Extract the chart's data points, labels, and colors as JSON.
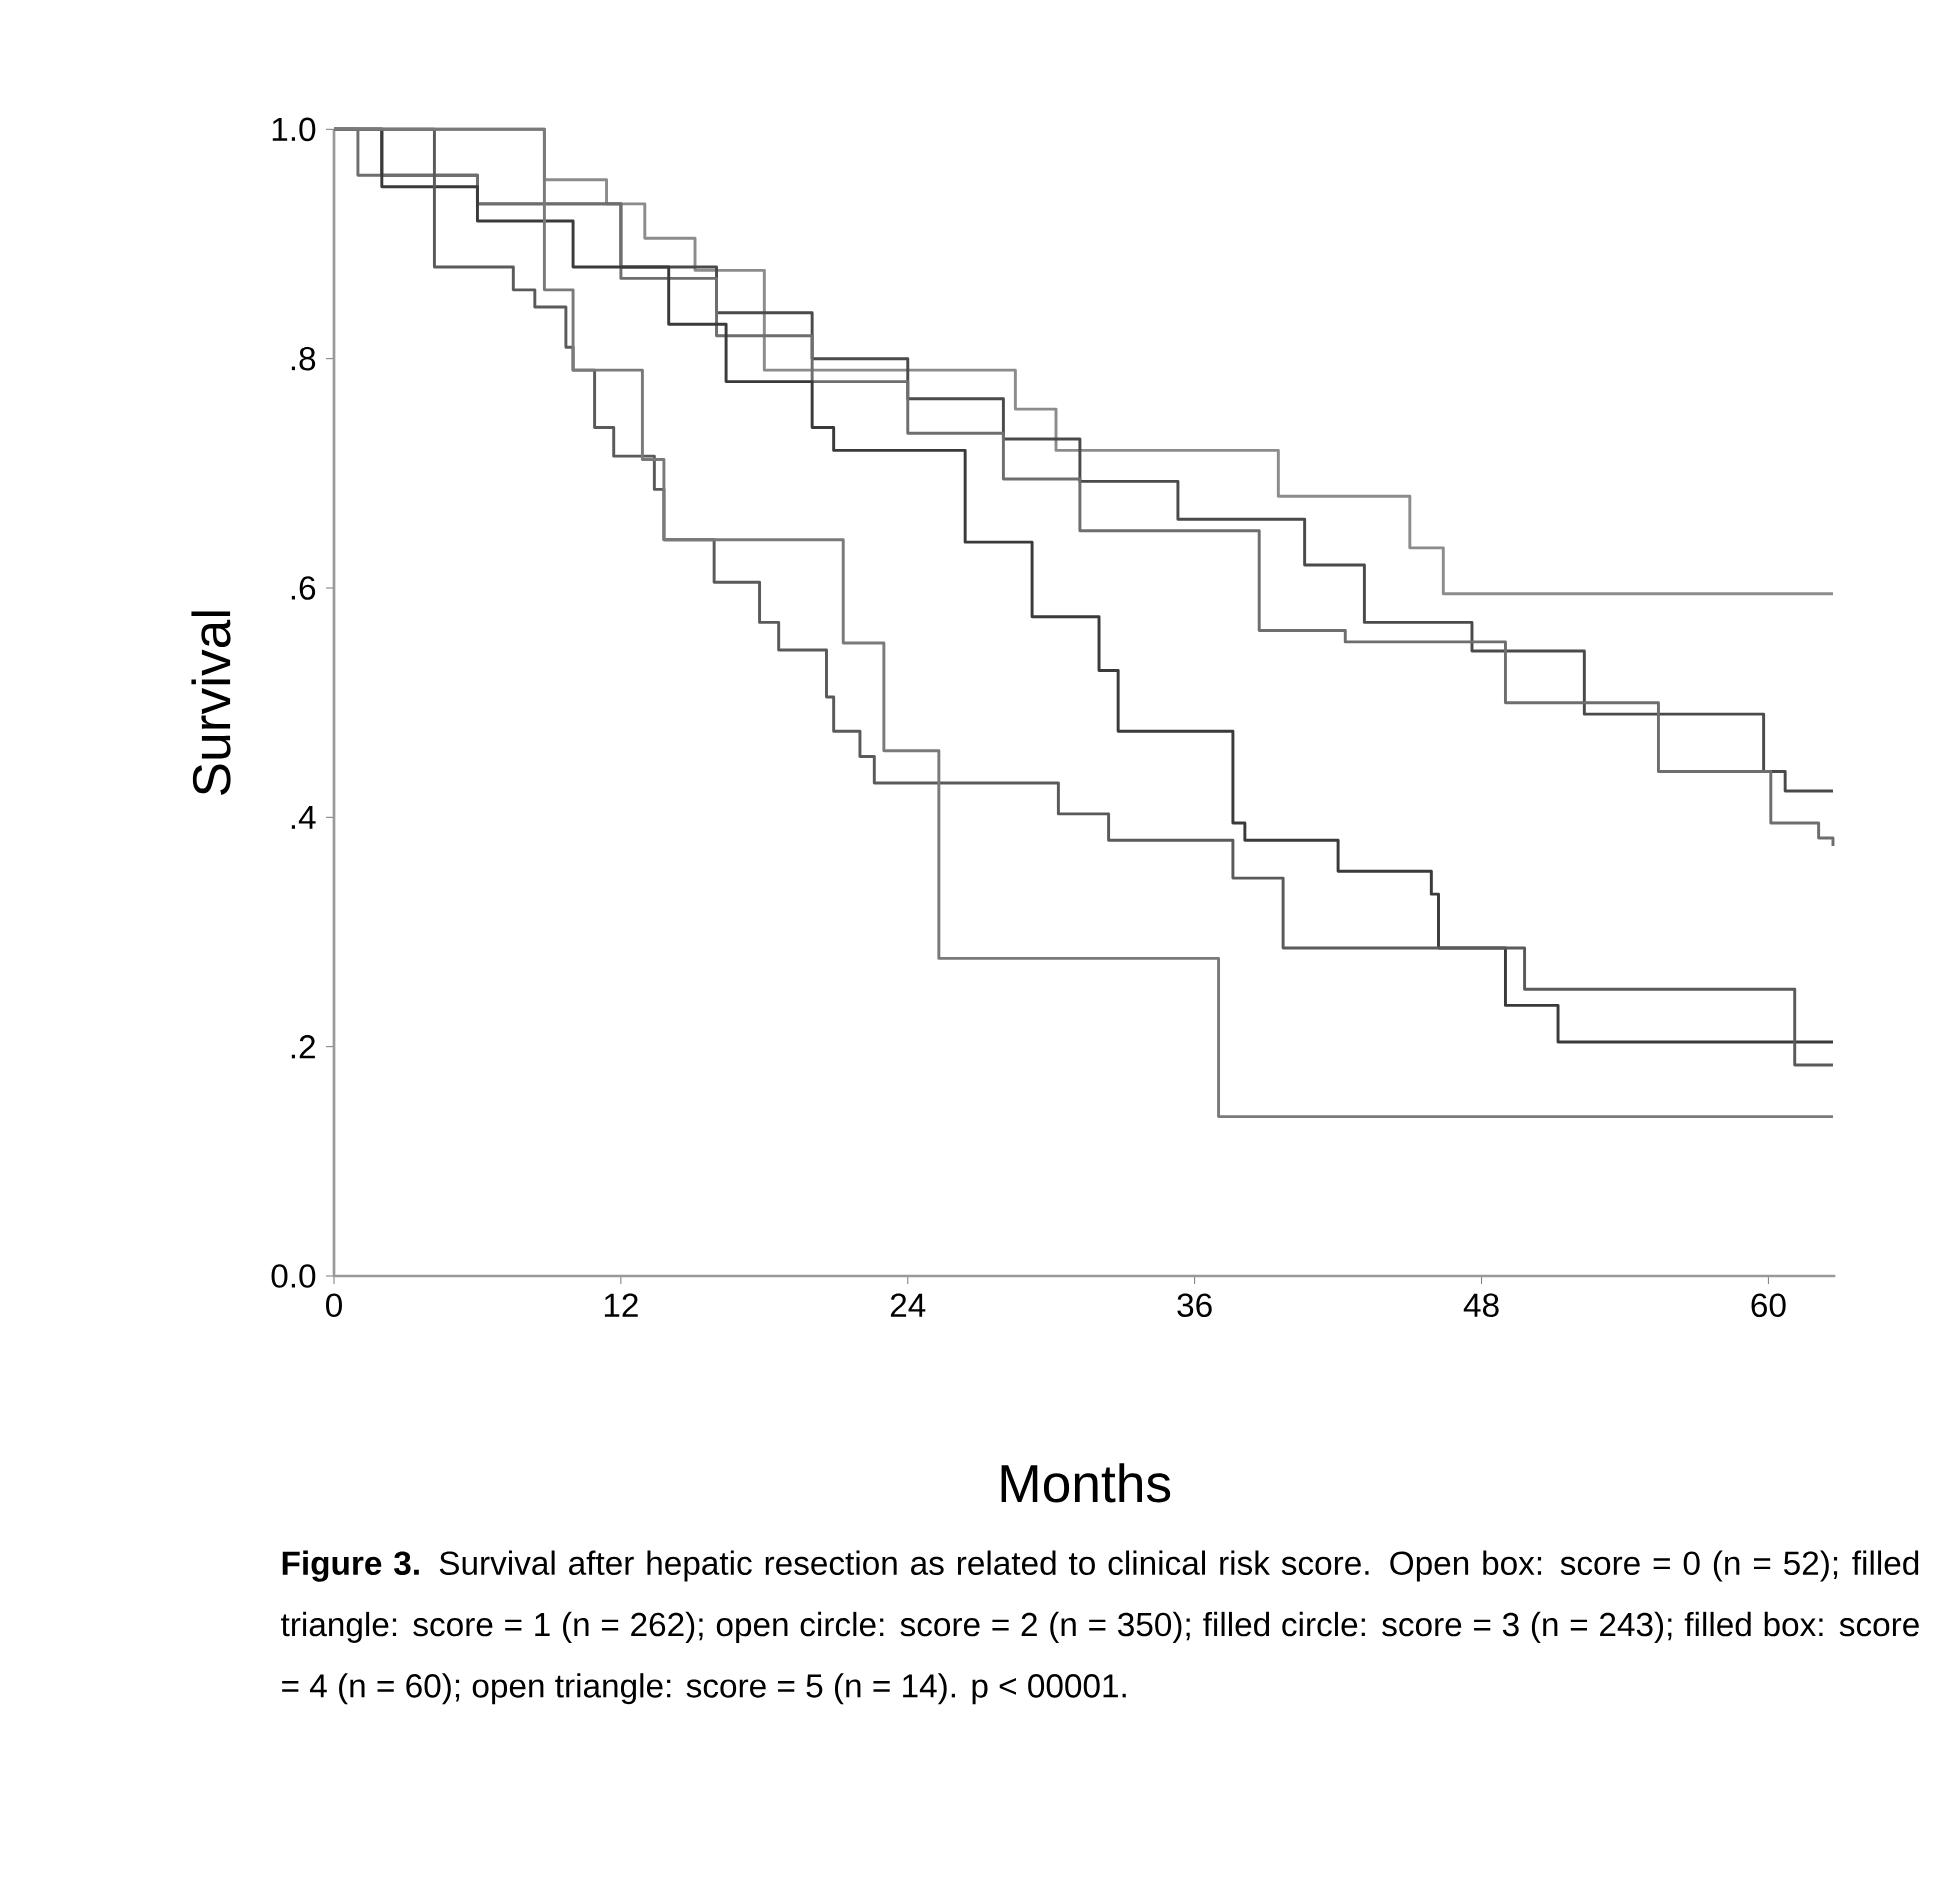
{
  "chart_data": {
    "type": "step",
    "xlabel": "Months",
    "ylabel": "Survival",
    "xlim": [
      0,
      62.8
    ],
    "ylim": [
      0,
      1.0
    ],
    "xticks": [
      0,
      12,
      24,
      36,
      48,
      60
    ],
    "yticks": [
      {
        "value": 0,
        "label": "0.0"
      },
      {
        "value": 0.2,
        "label": ".2"
      },
      {
        "value": 0.4,
        "label": ".4"
      },
      {
        "value": 0.6,
        "label": ".6"
      },
      {
        "value": 0.8,
        "label": ".8"
      },
      {
        "value": 1.0,
        "label": "1.0"
      }
    ],
    "series": [
      {
        "color": "#8c8c8c",
        "x": [
          0,
          8.8,
          11.4,
          13.0,
          15.1,
          18.0,
          28.5,
          30.2,
          39.5,
          45.0,
          46.4,
          62.7
        ],
        "values": [
          1.0,
          0.956,
          0.935,
          0.905,
          0.877,
          0.79,
          0.756,
          0.72,
          0.68,
          0.635,
          0.595,
          0.595
        ]
      },
      {
        "color": "#4a4a4a",
        "x": [
          0,
          2,
          6,
          12,
          16,
          20,
          24,
          28,
          31.2,
          35.3,
          40.6,
          43.1,
          47.6,
          52.3,
          55.4,
          59.8,
          60.7,
          62.7
        ],
        "values": [
          1.0,
          0.96,
          0.935,
          0.88,
          0.84,
          0.8,
          0.765,
          0.73,
          0.693,
          0.66,
          0.62,
          0.57,
          0.545,
          0.49,
          0.49,
          0.44,
          0.423,
          0.423
        ]
      },
      {
        "color": "#6e6e6e",
        "x": [
          0,
          1,
          6,
          12,
          16,
          20,
          24,
          28,
          31.2,
          38.7,
          42.3,
          49.0,
          55.4,
          60.1,
          62.1,
          62.7
        ],
        "values": [
          1.0,
          0.96,
          0.935,
          0.87,
          0.82,
          0.78,
          0.735,
          0.695,
          0.65,
          0.563,
          0.553,
          0.5,
          0.44,
          0.395,
          0.382,
          0.375
        ]
      },
      {
        "color": "#3a3a3a",
        "x": [
          0,
          2,
          6,
          10,
          14,
          16.4,
          20,
          20.9,
          26.4,
          29.2,
          32,
          32.8,
          37.6,
          38.1,
          42,
          45.9,
          46.2,
          49,
          51.2,
          62.7
        ],
        "values": [
          1.0,
          0.95,
          0.92,
          0.88,
          0.83,
          0.78,
          0.74,
          0.72,
          0.64,
          0.575,
          0.528,
          0.475,
          0.395,
          0.38,
          0.353,
          0.333,
          0.286,
          0.236,
          0.204,
          0.204
        ]
      },
      {
        "color": "#5a5a5a",
        "x": [
          0,
          4.2,
          7.5,
          8.4,
          9.7,
          10,
          10.9,
          11.7,
          13.4,
          13.8,
          15.9,
          17.8,
          18.6,
          20.6,
          20.9,
          22,
          22.6,
          30.3,
          32.4,
          37.6,
          39.7,
          49.8,
          61.1,
          62.7
        ],
        "values": [
          1.0,
          0.88,
          0.86,
          0.845,
          0.81,
          0.79,
          0.74,
          0.715,
          0.686,
          0.642,
          0.605,
          0.57,
          0.546,
          0.505,
          0.475,
          0.453,
          0.43,
          0.403,
          0.38,
          0.347,
          0.286,
          0.25,
          0.184,
          0.184
        ]
      },
      {
        "color": "#7a7a7a",
        "x": [
          0,
          8.8,
          10,
          12.9,
          13.8,
          21.3,
          23,
          25.3,
          37,
          62.7
        ],
        "values": [
          1.0,
          0.86,
          0.79,
          0.712,
          0.642,
          0.552,
          0.458,
          0.277,
          0.139,
          0.139
        ]
      }
    ],
    "annotations": [
      "**Figure 3.** Survival after hepatic resection as related to clinical risk score. Open box: score = 0 (n = 52); filled triangle: score = 1 (n = 262); open circle: score = 2 (n = 350); filled circle: score = 3 (n = 243); filled box: score = 4 (n = 60); open triangle: score = 5 (n = 14). p < 00001."
    ]
  }
}
